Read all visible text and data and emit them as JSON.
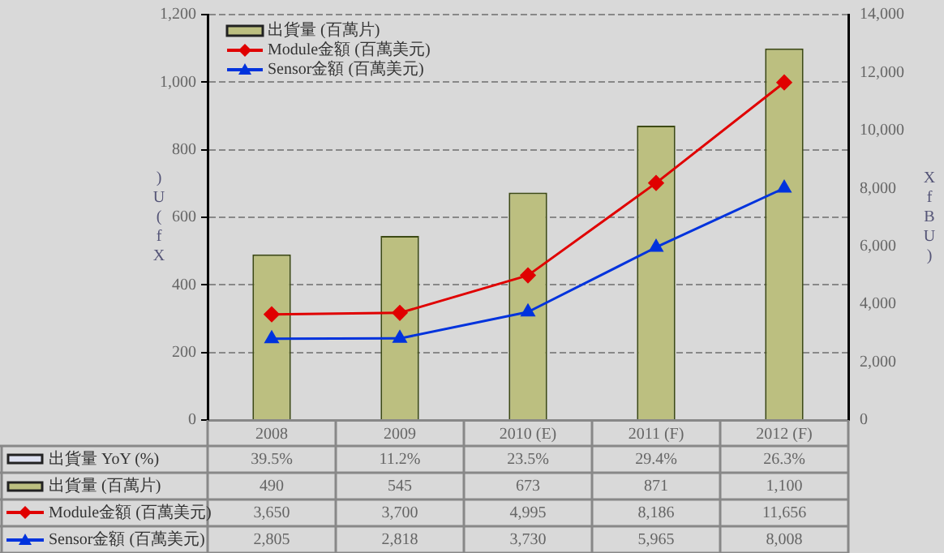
{
  "chart_data": {
    "type": "bar",
    "categories": [
      "2008",
      "2009",
      "2010 (E)",
      "2011 (F)",
      "2012 (F)"
    ],
    "ylabel": ")U(fX",
    "y2label": "XfBU)",
    "series": [
      {
        "name": "出貨量 (百萬片)",
        "color": "#bcbf80",
        "values": [
          490,
          545,
          673,
          871,
          1100
        ],
        "value_labels": [
          "490",
          "545",
          "673",
          "871",
          "1,100"
        ]
      },
      {
        "name": "Module金額 (百萬美元)",
        "type": "line",
        "axis": "y2",
        "marker": "diamond",
        "color": "#e00000",
        "values": [
          3650,
          3700,
          4995,
          8186,
          11656
        ],
        "value_labels": [
          "3,650",
          "3,700",
          "4,995",
          "8,186",
          "11,656"
        ]
      },
      {
        "name": "Sensor金額 (百萬美元)",
        "type": "line",
        "axis": "y2",
        "marker": "triangle",
        "color": "#0033dd",
        "values": [
          2805,
          2818,
          3730,
          5965,
          8008
        ],
        "value_labels": [
          "2,805",
          "2,818",
          "3,730",
          "5,965",
          "8,008"
        ]
      }
    ],
    "annotations": [
      "出貨量 YoY (%)",
      "39.5%",
      "11.2%",
      "23.5%",
      "29.4%",
      "26.3%"
    ],
    "ylim": [
      0,
      1200
    ],
    "yticks": [
      {
        "value": 0,
        "label": "0"
      },
      {
        "value": 200,
        "label": "200"
      },
      {
        "value": 400,
        "label": "400"
      },
      {
        "value": 600,
        "label": "600"
      },
      {
        "value": 800,
        "label": "800"
      },
      {
        "value": 1000,
        "label": "1,000"
      },
      {
        "value": 1200,
        "label": "1,200"
      }
    ],
    "y2lim": [
      0,
      14000
    ],
    "y2ticks": [
      {
        "value": 0,
        "label": "0"
      },
      {
        "value": 2000,
        "label": "2,000"
      },
      {
        "value": 4000,
        "label": "4,000"
      },
      {
        "value": 6000,
        "label": "6,000"
      },
      {
        "value": 8000,
        "label": "8,000"
      },
      {
        "value": 10000,
        "label": "10,000"
      },
      {
        "value": 12000,
        "label": "12,000"
      },
      {
        "value": 14000,
        "label": "14,000"
      }
    ],
    "grid": "y",
    "legend": "top left"
  }
}
